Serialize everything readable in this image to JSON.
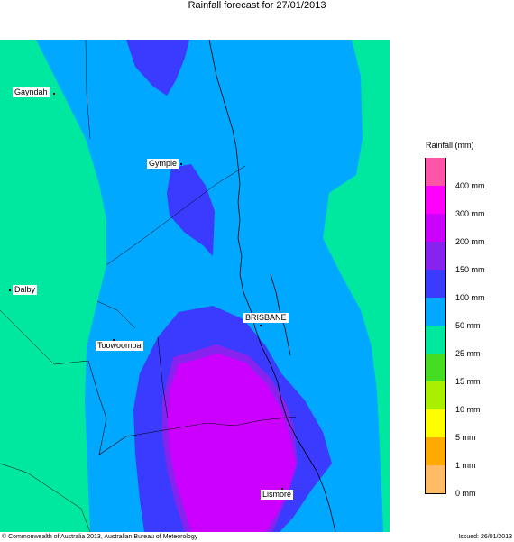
{
  "title": "Rainfall forecast for 27/01/2013",
  "places": [
    {
      "name": "Gayndah"
    },
    {
      "name": "Gympie"
    },
    {
      "name": "Dalby"
    },
    {
      "name": "BRISBANE"
    },
    {
      "name": "Toowoomba"
    },
    {
      "name": "Lismore"
    }
  ],
  "legend": {
    "title": "Rainfall (mm)",
    "bins": [
      {
        "label": "",
        "color": "#ff55a8"
      },
      {
        "label": "400 mm",
        "color": "#ff00ff"
      },
      {
        "label": "300 mm",
        "color": "#cc00ff"
      },
      {
        "label": "200 mm",
        "color": "#8822ee"
      },
      {
        "label": "150 mm",
        "color": "#3b3bff"
      },
      {
        "label": "100 mm",
        "color": "#00a8ff"
      },
      {
        "label": "50 mm",
        "color": "#00e8a0"
      },
      {
        "label": "25 mm",
        "color": "#44dd22"
      },
      {
        "label": "15 mm",
        "color": "#aaee00"
      },
      {
        "label": "10 mm",
        "color": "#ffff00"
      },
      {
        "label": "5 mm",
        "color": "#ffaa00"
      },
      {
        "label": "1 mm",
        "color": "#ffbb66"
      },
      {
        "label": "0 mm",
        "color": "#ffffff"
      }
    ]
  },
  "footer": {
    "copyright": "© Commonwealth of Australia 2013, Australian Bureau of Meteorology",
    "issued": "Issued: 26/01/2013"
  },
  "colors": {
    "band_50": "#00e8a0",
    "band_100": "#00a8ff",
    "band_150": "#3b3bff",
    "band_200": "#8822ee",
    "band_300": "#cc00ff"
  }
}
